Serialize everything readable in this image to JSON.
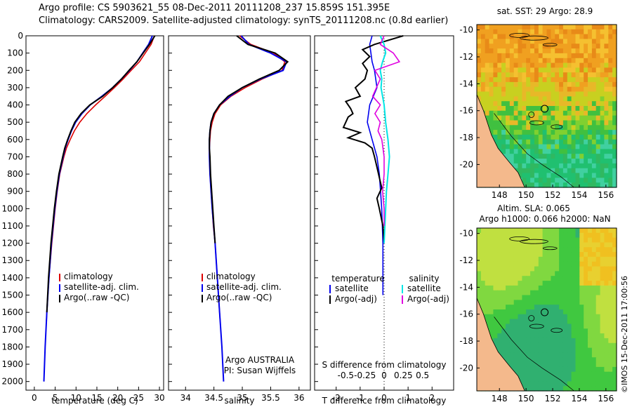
{
  "header": {
    "line1": "Argo profile: CS 5903621_55 08-Dec-2011 20111208_237 15.859S 151.395E",
    "line2": "Climatology: CARS2009. Satellite-adjusted climatology: synTS_20111208.nc (0.8d earlier)"
  },
  "colors": {
    "climatology": "#dd0000",
    "satellite": "#0000ee",
    "argo": "#000000",
    "sal_satellite": "#00e5e5",
    "sal_argo": "#e000e0",
    "land": "#f4b98c"
  },
  "chart_data": [
    {
      "id": "temperature",
      "type": "line",
      "xlabel": "temperature (deg C)",
      "xlim": [
        -2,
        31
      ],
      "ylim": [
        0,
        2050
      ],
      "xticks": [
        0,
        5,
        10,
        15,
        20,
        25,
        30
      ],
      "yticks": [
        0,
        100,
        200,
        300,
        400,
        500,
        600,
        700,
        800,
        900,
        1000,
        1100,
        1200,
        1300,
        1400,
        1500,
        1600,
        1700,
        1800,
        1900,
        2000
      ],
      "legend": [
        "climatology",
        "satellite-adj. clim.",
        "Argo(..raw -QC)"
      ],
      "series": [
        {
          "name": "climatology",
          "depth": [
            0,
            50,
            100,
            150,
            200,
            250,
            300,
            350,
            400,
            450,
            500,
            550,
            600,
            650,
            700,
            800,
            900,
            1000,
            1200,
            1400,
            1600,
            1650
          ],
          "values": [
            28.8,
            28.0,
            26.6,
            25.2,
            23.2,
            21.3,
            19.2,
            17.0,
            14.7,
            12.6,
            10.9,
            9.6,
            8.6,
            7.7,
            7.1,
            6.1,
            5.5,
            5.0,
            4.2,
            3.5,
            3.0,
            2.9
          ]
        },
        {
          "name": "satellite-adj. clim.",
          "depth": [
            0,
            50,
            100,
            150,
            200,
            250,
            300,
            350,
            400,
            450,
            500,
            550,
            600,
            650,
            700,
            800,
            900,
            1000,
            1200,
            1400,
            1600,
            1800,
            2000
          ],
          "values": [
            28.3,
            27.4,
            26.0,
            24.6,
            22.8,
            20.9,
            18.8,
            16.2,
            13.4,
            11.4,
            9.9,
            8.9,
            8.1,
            7.4,
            6.9,
            6.0,
            5.4,
            4.9,
            4.1,
            3.5,
            3.0,
            2.6,
            2.3
          ]
        },
        {
          "name": "Argo(..raw -QC)",
          "depth": [
            0,
            50,
            100,
            150,
            200,
            250,
            300,
            350,
            400,
            450,
            500,
            550,
            600,
            650,
            700,
            800,
            900,
            1000,
            1200,
            1400,
            1600
          ],
          "values": [
            28.9,
            27.6,
            26.1,
            24.6,
            22.7,
            20.9,
            18.8,
            16.4,
            13.3,
            11.2,
            9.7,
            8.8,
            8.0,
            7.3,
            6.8,
            5.9,
            5.3,
            4.8,
            4.0,
            3.4,
            3.0
          ]
        }
      ]
    },
    {
      "id": "salinity",
      "type": "line",
      "xlabel": "salinity",
      "xlim": [
        33.7,
        36.2
      ],
      "ylim": [
        0,
        2050
      ],
      "xticks": [
        34,
        34.5,
        35,
        35.5,
        36
      ],
      "legend": [
        "climatology",
        "satellite-adj. clim.",
        "Argo(..raw -QC)"
      ],
      "annotation": [
        "Argo AUSTRALIA",
        "PI: Susan Wijffels"
      ],
      "series": [
        {
          "name": "climatology",
          "depth": [
            0,
            50,
            100,
            150,
            200,
            250,
            300,
            350,
            400,
            450,
            500,
            550,
            600,
            650,
            700,
            800,
            900,
            1000,
            1100,
            1200,
            1400,
            1600,
            1650
          ],
          "values": [
            34.95,
            35.15,
            35.55,
            35.75,
            35.7,
            35.35,
            35.05,
            34.8,
            34.62,
            34.52,
            34.47,
            34.44,
            34.43,
            34.42,
            34.42,
            34.43,
            34.45,
            34.47,
            34.49,
            34.52,
            34.56,
            34.6,
            34.61
          ]
        },
        {
          "name": "satellite-adj. clim.",
          "depth": [
            0,
            50,
            100,
            150,
            200,
            250,
            300,
            350,
            400,
            450,
            500,
            550,
            600,
            650,
            700,
            800,
            900,
            1000,
            1200,
            1400,
            1600,
            1800,
            2000
          ],
          "values": [
            34.98,
            35.12,
            35.5,
            35.78,
            35.72,
            35.32,
            35.0,
            34.78,
            34.6,
            34.5,
            34.45,
            34.43,
            34.42,
            34.42,
            34.42,
            34.43,
            34.45,
            34.47,
            34.52,
            34.56,
            34.6,
            34.64,
            34.67
          ]
        },
        {
          "name": "Argo(..raw -QC)",
          "depth": [
            0,
            50,
            100,
            150,
            200,
            250,
            300,
            350,
            400,
            450,
            500,
            550,
            600,
            650,
            700,
            800,
            900,
            1000,
            1100,
            1200
          ],
          "values": [
            34.9,
            35.1,
            35.58,
            35.8,
            35.65,
            35.3,
            35.0,
            34.75,
            34.6,
            34.5,
            34.45,
            34.43,
            34.42,
            34.42,
            34.43,
            34.44,
            34.46,
            34.48,
            34.5,
            34.52
          ]
        }
      ]
    },
    {
      "id": "differences",
      "type": "line",
      "xlabel": "T difference from climatology",
      "xlabel_top": "S difference from climatology",
      "xlim": [
        -2.9,
        2.9
      ],
      "ylim": [
        0,
        2050
      ],
      "xticks": [
        -2,
        -1,
        0,
        1,
        2
      ],
      "sticks": [
        -0.5,
        -0.25,
        0,
        0.25,
        0.5
      ],
      "legend": {
        "col1": "temperature",
        "col2": "salinity",
        "items": [
          "satellite",
          "Argo(-adj)",
          "satellite",
          "Argo(-adj)"
        ]
      },
      "series": [
        {
          "name": "T satellite",
          "depth": [
            0,
            50,
            100,
            150,
            200,
            300,
            400,
            500,
            600,
            700,
            800,
            1000,
            1200,
            1500
          ],
          "values": [
            -0.5,
            -0.6,
            -0.55,
            -0.5,
            -0.4,
            -0.3,
            -0.6,
            -0.7,
            -0.5,
            -0.3,
            -0.2,
            -0.1,
            -0.05,
            -0.05
          ]
        },
        {
          "name": "T Argo(-adj)",
          "depth": [
            0,
            50,
            80,
            120,
            160,
            200,
            250,
            300,
            350,
            380,
            420,
            450,
            470,
            500,
            530,
            560,
            590,
            620,
            650,
            700,
            760,
            820,
            880,
            940,
            1000,
            1100,
            1200
          ],
          "values": [
            0.8,
            -0.4,
            -0.9,
            -0.6,
            -0.9,
            -0.7,
            -0.8,
            -1.2,
            -1.0,
            -1.6,
            -1.4,
            -1.3,
            -1.5,
            -1.6,
            -1.7,
            -1.0,
            -1.5,
            -0.8,
            -0.5,
            -0.4,
            -0.3,
            -0.2,
            -0.1,
            -0.3,
            -0.2,
            -0.05,
            0.0
          ]
        },
        {
          "name": "S satellite",
          "depth": [
            0,
            50,
            100,
            150,
            200,
            250,
            300,
            400,
            500,
            600,
            700,
            800,
            900,
            1000,
            1200
          ],
          "values": [
            -0.05,
            0.0,
            0.02,
            -0.02,
            -0.05,
            -0.03,
            -0.04,
            0.0,
            0.02,
            0.05,
            0.07,
            0.05,
            0.03,
            0.02,
            0.0
          ]
        },
        {
          "name": "S Argo(-adj)",
          "depth": [
            0,
            50,
            100,
            150,
            200,
            250,
            300,
            350,
            400,
            450,
            500,
            550,
            600,
            700,
            800,
            900,
            1000,
            1100
          ],
          "values": [
            0.0,
            -0.05,
            0.12,
            0.2,
            -0.12,
            -0.05,
            -0.1,
            -0.15,
            -0.05,
            -0.12,
            -0.05,
            -0.08,
            -0.03,
            0.0,
            0.0,
            -0.02,
            0.0,
            0.0
          ]
        }
      ]
    },
    {
      "id": "sst_map",
      "type": "heatmap",
      "title": "sat. SST: 29 Argo: 28.9",
      "xticks": [
        148,
        150,
        152,
        154,
        156
      ],
      "yticks": [
        -10,
        -12,
        -14,
        -16,
        -18,
        -20
      ],
      "argo_lon": 151.395,
      "argo_lat": -15.859
    },
    {
      "id": "sla_map",
      "type": "heatmap",
      "title_line1": "Altim. SLA: 0.065",
      "title_line2": "Argo h1000: 0.066 h2000: NaN",
      "xticks": [
        148,
        150,
        152,
        154,
        156
      ],
      "yticks": [
        -10,
        -12,
        -14,
        -16,
        -18,
        -20
      ],
      "argo_lon": 151.395,
      "argo_lat": -15.859
    }
  ],
  "footer": {
    "stamp": "©IMOS 15-Dec-2011 17:00:56"
  }
}
